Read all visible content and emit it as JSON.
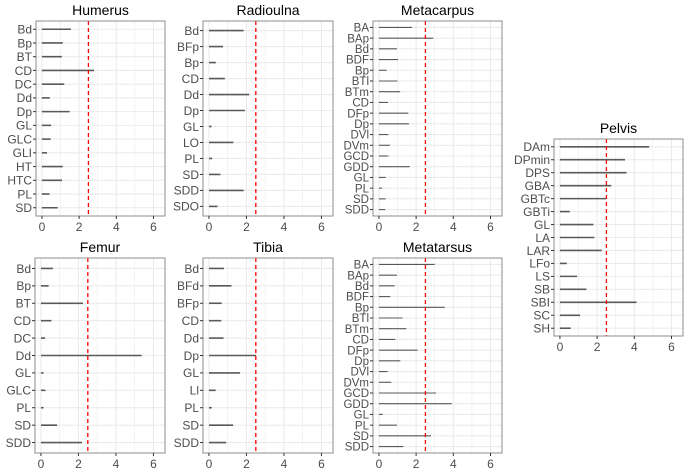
{
  "chart_data": [
    {
      "type": "bar",
      "orientation": "horizontal",
      "title": "Humerus",
      "xlim": [
        0,
        6
      ],
      "xticks": [
        0,
        2,
        4,
        6
      ],
      "reference_line": 2.5,
      "categories": [
        "Bd",
        "Bp",
        "BT",
        "CD",
        "DC",
        "Dd",
        "Dp",
        "GL",
        "GLC",
        "GLI",
        "HT",
        "HTC",
        "PL",
        "SD"
      ],
      "values": [
        1.56,
        1.12,
        1.07,
        2.8,
        1.2,
        0.42,
        1.49,
        0.49,
        0.47,
        0.27,
        1.12,
        1.08,
        0.41,
        0.85
      ]
    },
    {
      "type": "bar",
      "orientation": "horizontal",
      "title": "Radioulna",
      "xlim": [
        0,
        6
      ],
      "xticks": [
        0,
        2,
        4,
        6
      ],
      "reference_line": 2.5,
      "categories": [
        "Bd",
        "BFp",
        "Bp",
        "CD",
        "Dd",
        "Dp",
        "GL",
        "LO",
        "PL",
        "SD",
        "SDD",
        "SDO"
      ],
      "values": [
        1.85,
        0.75,
        0.37,
        0.85,
        2.15,
        1.92,
        0.14,
        1.3,
        0.17,
        0.61,
        1.85,
        0.46
      ]
    },
    {
      "type": "bar",
      "orientation": "horizontal",
      "title": "Metacarpus",
      "xlim": [
        0,
        6
      ],
      "xticks": [
        0,
        2,
        4,
        6
      ],
      "reference_line": 2.5,
      "categories": [
        "BA",
        "BAp",
        "Bd",
        "BDF",
        "Bp",
        "BTl",
        "BTm",
        "CD",
        "DFp",
        "Dp",
        "DVl",
        "DVm",
        "GCD",
        "GDD",
        "GL",
        "PL",
        "SD",
        "SDD"
      ],
      "values": [
        1.78,
        2.92,
        0.97,
        1.03,
        0.41,
        1.0,
        1.14,
        0.49,
        1.58,
        1.61,
        0.51,
        0.59,
        0.51,
        1.66,
        0.36,
        0.17,
        0.36,
        0.34
      ]
    },
    {
      "type": "bar",
      "orientation": "horizontal",
      "title": "Femur",
      "xlim": [
        0,
        6
      ],
      "xticks": [
        0,
        2,
        4,
        6
      ],
      "reference_line": 2.5,
      "categories": [
        "Bd",
        "Bp",
        "BT",
        "CD",
        "DC",
        "Dd",
        "GL",
        "GLC",
        "PL",
        "SD",
        "SDD"
      ],
      "values": [
        0.64,
        0.41,
        2.24,
        0.56,
        0.22,
        5.37,
        0.14,
        0.24,
        0.14,
        0.86,
        2.19
      ]
    },
    {
      "type": "bar",
      "orientation": "horizontal",
      "title": "Tibia",
      "xlim": [
        0,
        6
      ],
      "xticks": [
        0,
        2,
        4,
        6
      ],
      "reference_line": 2.5,
      "categories": [
        "Bd",
        "BFd",
        "BFp",
        "CD",
        "Dd",
        "Dp",
        "GL",
        "Ll",
        "PL",
        "SD",
        "SDD"
      ],
      "values": [
        0.8,
        1.2,
        0.68,
        0.66,
        0.78,
        2.51,
        1.66,
        0.36,
        0.15,
        1.29,
        0.92
      ]
    },
    {
      "type": "bar",
      "orientation": "horizontal",
      "title": "Metatarsus",
      "xlim": [
        0,
        6
      ],
      "xticks": [
        0,
        2,
        4,
        6
      ],
      "reference_line": 2.5,
      "categories": [
        "BA",
        "BAp",
        "Bd",
        "BDF",
        "Bp",
        "BTl",
        "BTm",
        "CD",
        "DFp",
        "Dp",
        "DVl",
        "DVm",
        "GCD",
        "GDD",
        "GL",
        "PL",
        "SD",
        "SDD"
      ],
      "values": [
        3.0,
        0.97,
        0.85,
        0.61,
        3.54,
        1.27,
        1.47,
        0.88,
        2.08,
        1.15,
        0.47,
        0.66,
        3.07,
        3.92,
        0.2,
        0.97,
        2.8,
        1.31
      ]
    },
    {
      "type": "bar",
      "orientation": "horizontal",
      "title": "Pelvis",
      "xlim": [
        0,
        6
      ],
      "xticks": [
        0,
        2,
        4,
        6
      ],
      "reference_line": 2.5,
      "categories": [
        "DAm",
        "DPmin",
        "DPS",
        "GBA",
        "GBTc",
        "GBTi",
        "GL",
        "LA",
        "LAR",
        "LFo",
        "LS",
        "SB",
        "SBI",
        "SC",
        "SH"
      ],
      "values": [
        4.8,
        3.5,
        3.58,
        2.76,
        2.49,
        0.53,
        1.8,
        1.85,
        2.25,
        0.37,
        0.93,
        1.42,
        4.12,
        1.08,
        0.58
      ]
    }
  ],
  "colors": {
    "segment": "#595959",
    "reference_line": "#ff0000",
    "panel_border": "#8c8c8c",
    "grid": "#ebebeb",
    "text": "#4d4d4d"
  },
  "grid": true
}
